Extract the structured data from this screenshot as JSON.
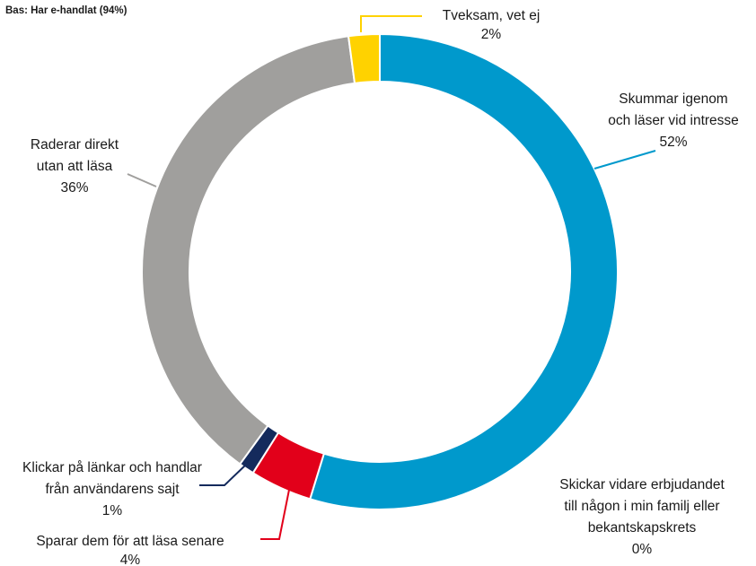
{
  "chart_data": {
    "type": "pie",
    "subtitle": "Bas: Har e-handlat (94%)",
    "categories": [
      [
        "Skummar igenom",
        "och läser vid intresse"
      ],
      [
        "Skickar vidare erbjudandet",
        "till någon i min familj eller",
        "bekantskapskrets"
      ],
      [
        "Sparar dem för att läsa senare"
      ],
      [
        "Klickar på länkar och handlar",
        "från användarens sajt"
      ],
      [
        "Raderar direkt",
        "utan att läsa"
      ],
      [
        "Tveksam, vet ej"
      ]
    ],
    "values": [
      52,
      0,
      4,
      1,
      36,
      2
    ],
    "value_labels": [
      "52%",
      "0%",
      "4%",
      "1%",
      "36%",
      "2%"
    ],
    "colors": [
      "#0099cc",
      null,
      "#e2001a",
      "#142a5c",
      "#a09f9d",
      "#ffd200"
    ]
  }
}
